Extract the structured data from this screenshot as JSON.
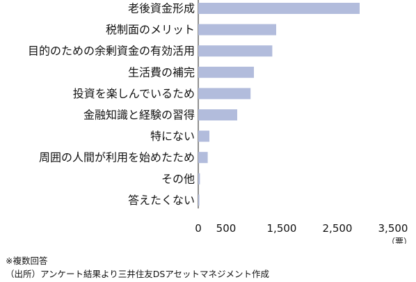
{
  "chart_data": {
    "type": "bar",
    "orientation": "horizontal",
    "categories": [
      "老後資金形成",
      "税制面のメリット",
      "目的のための余剰資金の有効活用",
      "生活費の補完",
      "投資を楽しんでいるため",
      "金融知識と経験の習得",
      "特にない",
      "周囲の人間が利用を始めたため",
      "その他",
      "答えたくない"
    ],
    "values": [
      2900,
      1400,
      1330,
      1000,
      940,
      700,
      200,
      170,
      30,
      20
    ],
    "xlim": [
      0,
      3500
    ],
    "tick_values": [
      0,
      500,
      1500,
      2500,
      3500
    ],
    "tick_labels": [
      "0",
      "500",
      "1,500",
      "2,500",
      "3,500"
    ],
    "unit_label": "（票）",
    "bar_color": "#b2bcdc",
    "grid": false,
    "legend": "none"
  },
  "notes": {
    "line1": "※複数回答",
    "line2": "（出所）アンケート結果より三井住友DSアセットマネジメント作成"
  }
}
